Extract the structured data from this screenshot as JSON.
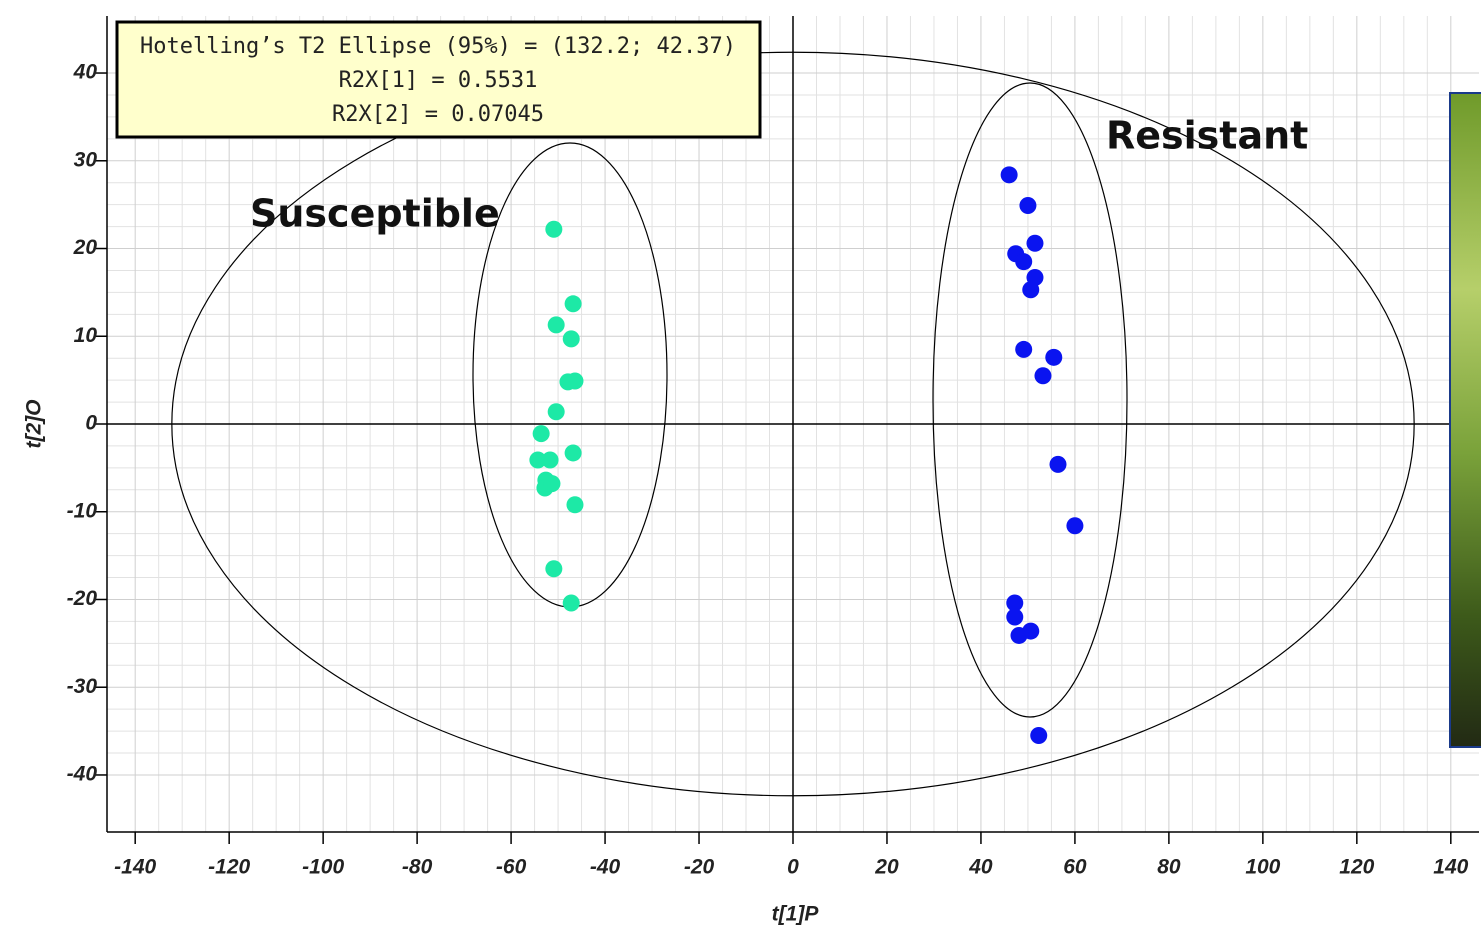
{
  "chart_data": {
    "type": "scatter",
    "x_label": "t[1]P",
    "y_label": "t[2]O",
    "xlim": [
      -146,
      146
    ],
    "ylim": [
      -46.5,
      46.5
    ],
    "xticks": [
      -140,
      -120,
      -100,
      -80,
      -60,
      -40,
      -20,
      0,
      20,
      40,
      60,
      80,
      100,
      120,
      140
    ],
    "yticks": [
      -40,
      -30,
      -20,
      -10,
      0,
      10,
      20,
      30,
      40
    ],
    "grid": true,
    "hotelling_ellipse": [
      132.2,
      42.37
    ],
    "annotation_lines": [
      "Hotelling’s T2 Ellipse (95%) = (132.2; 42.37)",
      "R2X[1] = 0.5531",
      "R2X[2] = 0.07045"
    ],
    "group_labels": [
      "Susceptible",
      "Resistant"
    ],
    "series": [
      {
        "color": "#1de9a6",
        "x": [
          -50.9,
          -46.8,
          -50.4,
          -47.2,
          -46.4,
          -47.9,
          -50.4,
          -53.6,
          -54.3,
          -51.7,
          -46.8,
          -52.6,
          -52.8,
          -51.3,
          -46.4,
          -50.9,
          -47.2
        ],
        "values": [
          22.2,
          13.7,
          11.3,
          9.7,
          4.9,
          4.8,
          1.4,
          -1.1,
          -4.1,
          -4.1,
          -3.3,
          -6.4,
          -7.3,
          -6.8,
          -9.2,
          -16.5,
          -20.4
        ]
      },
      {
        "color": "#0a14f0",
        "x": [
          46.0,
          50.0,
          51.5,
          47.4,
          49.1,
          51.5,
          50.6,
          49.1,
          55.5,
          53.2,
          56.4,
          60.0,
          47.2,
          47.2,
          48.1,
          50.6,
          52.3
        ],
        "values": [
          28.4,
          24.9,
          20.6,
          19.4,
          18.5,
          16.7,
          15.3,
          8.5,
          7.6,
          5.5,
          -4.6,
          -11.6,
          -20.4,
          -22.0,
          -24.1,
          -23.6,
          -35.5
        ]
      }
    ]
  }
}
